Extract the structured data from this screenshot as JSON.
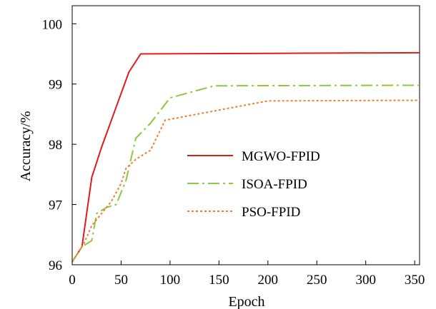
{
  "chart_data": {
    "type": "line",
    "title": "",
    "xlabel": "Epoch",
    "ylabel": "Accuracy/%",
    "xlim": [
      0,
      355
    ],
    "ylim": [
      96,
      100.3
    ],
    "xticks": [
      0,
      50,
      100,
      150,
      200,
      250,
      300,
      350
    ],
    "yticks": [
      96,
      97,
      98,
      99,
      100
    ],
    "grid": false,
    "legend_position": "center-right",
    "series": [
      {
        "name": "MGWO-FPID",
        "color": "#e31a1c",
        "style": "solid",
        "x": [
          0,
          10,
          20,
          30,
          45,
          58,
          70,
          355
        ],
        "y": [
          96.05,
          96.3,
          97.45,
          97.95,
          98.62,
          99.2,
          99.5,
          99.52
        ]
      },
      {
        "name": "ISOA-FPID",
        "color": "#8dc63f",
        "style": "dashdot",
        "x": [
          0,
          10,
          20,
          25,
          35,
          45,
          55,
          65,
          80,
          100,
          145,
          355
        ],
        "y": [
          96.05,
          96.3,
          96.4,
          96.85,
          96.95,
          97.0,
          97.4,
          98.1,
          98.35,
          98.77,
          98.97,
          98.98
        ]
      },
      {
        "name": "PSO-FPID",
        "color": "#ed7d31",
        "style": "dotted",
        "x": [
          0,
          12,
          20,
          30,
          40,
          50,
          55,
          65,
          80,
          95,
          200,
          355
        ],
        "y": [
          96.05,
          96.35,
          96.65,
          96.85,
          97.05,
          97.35,
          97.6,
          97.75,
          97.9,
          98.4,
          98.72,
          98.73
        ]
      }
    ]
  }
}
